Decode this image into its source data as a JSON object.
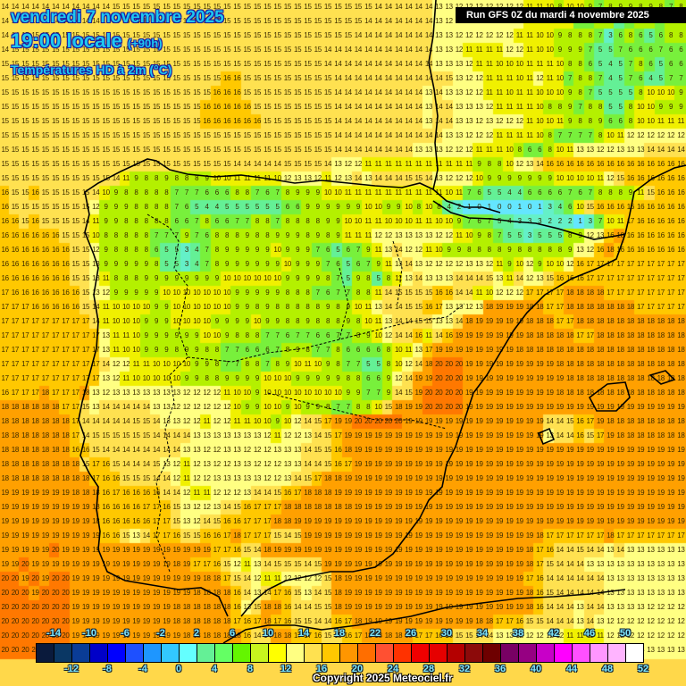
{
  "header": {
    "date": "vendredi 7 novembre 2025",
    "time": "19:00 locale",
    "offset": "(+90h)",
    "parameter": "Températures HD à 2m (°C)"
  },
  "run_banner": "Run GFS 0Z du mardi 4 novembre 2025",
  "copyright": "Copyright 2025 Meteociel.fr",
  "legend": {
    "colors": [
      "#0a1a3c",
      "#0a3764",
      "#0a3c96",
      "#0000c8",
      "#0000ff",
      "#1e50ff",
      "#1e96ff",
      "#32c8ff",
      "#64ffff",
      "#64f096",
      "#64ff64",
      "#64f500",
      "#c8f51e",
      "#ffff00",
      "#ffff82",
      "#ffe150",
      "#ffc800",
      "#ff9600",
      "#ff6e00",
      "#ff5032",
      "#ff3200",
      "#f00000",
      "#e60000",
      "#b40000",
      "#8c0a0a",
      "#6e0000",
      "#780064",
      "#960082",
      "#c800c8",
      "#ff00ff",
      "#ff50ff",
      "#ff96ff",
      "#ffb4ff",
      "#ffffff"
    ],
    "labels_top": [
      "-14",
      "-10",
      "-6",
      "-2",
      "2",
      "6",
      "10",
      "14",
      "18",
      "22",
      "26",
      "30",
      "34",
      "38",
      "42",
      "46",
      "50"
    ],
    "labels_bottom": [
      "-12",
      "-8",
      "-4",
      "0",
      "4",
      "8",
      "12",
      "16",
      "20",
      "24",
      "28",
      "32",
      "36",
      "40",
      "44",
      "48",
      "52"
    ]
  },
  "map": {
    "grid_cols": 68,
    "grid_rows": 46,
    "rows": [
      "14 14 14 14 14 14 14 14 14 14 14 15 15 15 15 15 15 15 15 15 15 15 15 15 15 15 15 15 15 15 15 15 15 15 15 15 15 14 14 14 14 14 14 13 13 12 12 12 12 12 12 12 11 11 10 8 10 10 9 7 8 9 9 8 9 8 7 8",
      "14 14 14 14 14 14 14 14 14 14 14 15 15 15 15 15 15 15 15 15 15 15 15 15 15 15 15 15 15 15 15 15 15 15 15 15 14 14 14 14 14 14 14 13 12 12 12 12 12 12 12 12 11 10 10 10 10 7 6 8 8 5 7 9 8 6 8 9",
      "14 14 15 15 15 15 15 15 15 15 15 15 15 15 15 15 15 15 15 15 15 15 15 15 15 15 15 15 15 15 15 15 15 15 15 14 14 14 14 14 14 14 14 13 13 12 12 12 12 12 12 11 11 10 10 9 8 8 8 7 3 6 8 6 5 6 8 8",
      "14 15 15 15 15 15 15 15 15 15 15 15 15 15 15 15 15 15 15 15 15 15 15 15 15 15 15 15 15 15 15 15 14 14 14 14 14 14 14 14 14 14 14 13 13 12 11 11 11 11 12 12 11 10 10 9 9 9 7 5 5 7 6 6 6 7 6 6",
      "15 15 15 15 15 15 15 15 15 15 15 15 15 15 15 15 15 15 15 15 15 15 15 15 15 15 15 15 15 15 15 15 14 14 14 14 14 14 14 14 14 14 14 13 13 13 12 11 11 10 10 10 11 11 11 10 8 8 6 5 4 5 7 8 6 5 6 6",
      "15 15 15 15 15 15 15 15 15 15 15 15 15 15 15 15 15 15 15 15 15 15 16 16 15 15 15 15 15 15 15 15 15 14 14 14 14 14 14 14 14 14 14 14 15 13 12 12 11 11 11 10 11 12 11 10 7 8 8 7 4 5 7 6 4 5 7 7",
      "15 15 15 15 15 15 15 15 15 15 15 15 15 15 15 15 15 15 15 15 15 16 16 16 15 15 15 15 15 15 15 15 15 14 14 14 14 14 14 14 14 14 13 14 13 13 12 12 11 11 10 11 11 10 10 10 9 8 7 5 5 5 5 8 10 10 10 9",
      "15 15 15 15 15 15 15 15 15 15 15 15 15 15 15 15 15 15 15 15 16 16 16 16 16 15 15 15 15 15 15 15 15 14 14 14 14 14 14 14 14 14 13 14 14 13 13 13 12 11 11 11 11 10 8 8 9 7 8 8 5 5 8 10 10 9 9 9",
      "15 15 15 15 15 15 15 15 15 15 15 15 15 15 15 15 15 15 15 15 16 16 16 16 16 16 15 15 15 15 15 15 15 14 14 14 14 14 14 14 14 14 13 14 14 13 13 12 13 12 12 12 11 10 10 11 9 8 8 9 6 6 8 10 10 11 11 11",
      "15 15 15 15 15 15 15 15 15 15 15 15 15 15 15 15 15 15 15 15 15 15 15 15 15 15 15 15 15 15 15 15 15 14 14 14 14 14 14 14 14 14 14 14 13 13 12 12 12 11 11 11 11 10 8 7 7 7 7 8 10 11 12 12 12 12 12 12",
      "15 15 15 15 15 15 15 15 15 15 15 15 15 15 15 15 15 15 15 15 15 15 15 15 15 15 15 15 15 15 15 15 15 14 14 14 14 14 14 14 14 13 13 13 12 12 12 11 11 11 10 8 6 6 8 10 11 13 13 12 12 13 13 13 14 14 14 14",
      "15 15 15 15 15 15 15 15 15 15 15 15 15 15 15 15 15 15 15 15 15 15 15 14 14 14 14 14 15 15 15 15 14 13 12 12 11 11 11 11 11 11 11 11 11 11 11 9 8 8 10 12 13 14 16 16 16 16 16 16 16 16 16 16 16 16 16 16",
      "15 15 15 15 15 15 15 15 15 15 15 14 11 9 8 8 9 8 8 8 9 10 10 11 11 11 11 10 12 13 13 12 11 12 13 14 13 14 14 14 15 15 14 13 12 12 12 10 9 9 9 9 9 9 9 10 10 10 10 11 12 15 16 16 16 16 16 16",
      "16 15 15 16 15 15 15 15 15 14 10 9 8 8 8 8 8 7 7 7 6 6 6 8 8 7 6 7 8 9 9 9 10 10 11 11 11 11 11 11 11 11 11 11 10 11 7 6 5 5 4 4 6 6 6 6 7 6 7 8 8 8 9 11 15 16 16 16",
      "16 15 15 15 15 15 15 15 15 12 9 9 9 8 8 8 8 7 6 5 4 4 5 5 5 5 5 5 6 6 9 9 9 9 9 9 10 10 9 9 10 8 10 8 4 2 1 0 1 0 0 1 0 1 3 4 6 10 15 16 16 16 16 16 16 16 16 16",
      "16 16 15 16 15 15 15 15 14 11 9 9 8 8 8 8 8 6 6 7 8 6 6 7 7 8 8 7 8 8 8 8 9 9 10 10 11 11 10 10 10 11 11 10 10 9 7 6 7 5 4 3 3 3 2 2 2 1 3 7 10 11 17 16 16 16 16 16",
      "16 16 16 16 16 16 15 15 15 10 8 8 8 8 8 7 7 7 9 7 6 8 8 8 9 8 8 9 9 9 8 9 8 9 11 11 11 12 12 13 13 13 13 12 12 11 10 9 8 7 5 5 3 5 5 5 8 9 12 13 16 18 16 16 16 16 16 16",
      "16 16 16 16 16 16 16 15 15 12 9 8 8 8 8 6 5 5 3 4 7 8 9 9 9 9 9 10 9 9 9 7 6 5 6 7 9 11 13 14 12 12 11 10 9 9 8 8 8 8 9 8 8 8 8 8 9 13 12 16 18 16 16 16 16 16 16 16",
      "16 16 16 16 16 16 16 15 15 13 9 9 9 9 9 8 5 5 3 4 7 8 9 9 9 9 9 9 10 9 9 9 7 6 5 6 7 9 11 13 14 13 12 12 12 12 13 13 12 11 9 10 12 9 10 10 12 16 17 17 17 17 17 17 17 17 17 17",
      "16 16 16 16 16 16 16 15 15 13 11 8 8 8 9 9 9 9 9 9 9 9 10 10 10 10 10 10 9 9 9 9 8 7 5 9 8 5 8 11 13 14 13 13 13 14 14 14 15 13 11 14 12 13 15 16 16 16 17 17 17 17 17 17 17 17 17 17",
      "17 16 16 16 16 16 16 16 15 13 12 9 9 9 9 9 10 10 10 10 10 10 10 9 9 9 9 9 8 8 8 7 6 7 7 8 8 11 14 15 15 15 15 16 16 14 14 11 10 12 12 12 17 17 17 17 18 18 18 18 17 17 17 17 17 17 17 17",
      "17 17 17 16 16 16 16 16 15 14 11 10 10 10 10 9 9 10 10 10 10 10 10 9 9 8 9 8 8 8 8 8 9 8 9 10 11 13 14 14 15 15 16 17 13 13 12 13 18 19 19 19 18 18 17 17 18 18 18 18 18 18 18 17 17 17 17 17",
      "17 17 17 17 17 17 17 17 17 14 11 10 10 10 9 9 9 10 10 10 10 9 9 9 9 10 9 9 8 8 9 8 8 8 9 8 10 11 13 14 14 15 15 13 13 14 18 19 19 19 19 19 18 18 18 17 17 18 18 18 18 18 18 18 18 18 18 18",
      "17 17 17 17 17 17 17 17 17 17 13 11 11 10 9 9 9 9 9 9 10 10 9 8 8 8 7 7 6 7 7 6 6 7 7 8 9 10 12 14 14 16 11 14 16 19 19 19 19 19 19 19 18 18 18 18 18 17 17 18 18 18 18 18 18 18 18 18",
      "17 17 17 17 17 17 17 17 17 17 13 11 10 10 9 9 9 8 9 9 8 8 7 7 6 6 6 7 8 9 8 7 7 8 6 6 6 6 8 10 11 13 17 19 19 19 19 19 19 19 19 18 18 18 18 18 18 18 18 18 18 18 18 18 18 18 18 18",
      "17 17 17 17 17 17 17 17 17 17 14 12 12 11 11 10 10 10 10 9 9 8 7 7 8 8 7 8 9 10 11 10 9 8 7 7 5 5 8 10 12 14 18 20 20 20 19 19 19 19 19 19 19 19 19 18 18 18 18 18 18 18 18 18 18 18 18 18",
      "17 17 17 17 17 17 17 17 17 17 13 12 11 10 10 10 10 10 9 9 8 8 9 9 9 9 10 10 10 9 9 9 9 9 8 8 6 6 9 12 14 19 19 20 20 20 19 19 19 19 19 19 19 19 19 19 18 18 18 18 18 18 18 18 18 18 18 18",
      "16 17 17 17 18 17 17 17 18 13 12 13 13 13 13 13 13 13 12 12 12 12 11 10 10 9 10 10 10 10 10 10 10 10 9 9 7 7 9 14 15 19 20 20 20 20 19 19 19 19 19 19 19 19 19 18 18 18 18 18 18 18 18 18 18 18 18 18",
      "18 18 18 18 18 18 17 17 15 13 14 14 14 14 14 13 13 12 12 12 12 12 12 10 9 9 10 10 9 10 9 9 8 7 7 8 8 10 15 18 19 19 20 20 20 20 19 19 19 19 19 19 19 19 19 19 19 19 19 19 19 19 19 19 19 19 19 19",
      "18 18 18 18 18 18 18 17 14 14 14 14 14 15 15 14 13 13 12 12 11 12 12 11 11 10 10 9 10 12 14 15 17 19 19 20 20 20 20 20 19 19 19 19 19 19 19 19 19 19 19 19 19 19 14 14 15 16 17 19 18 18 18 18 18 18 18 18",
      "18 18 18 18 18 18 18 17 14 15 15 15 15 15 15 14 14 14 14 13 13 13 13 13 13 13 12 11 12 12 13 14 15 17 19 19 19 19 19 19 19 19 19 19 19 19 19 19 19 19 19 19 19 19 13 14 14 16 15 17 19 18 18 18 18 18 18 18",
      "18 18 18 18 18 18 18 16 16 15 14 14 14 14 14 14 14 14 13 13 12 12 13 13 12 12 12 13 13 13 14 15 15 16 18 19 19 19 19 19 19 19 19 19 19 19 19 19 19 19 19 19 19 19 19 19 19 19 19 19 19 19 19 19 19 19 19 19",
      "18 18 18 18 18 18 18 18 15 17 16 15 14 14 14 15 13 12 11 12 13 12 12 13 13 12 12 12 13 13 14 14 15 16 17 19 19 19 19 19 19 19 19 19 19 19 19 19 19 19 19 19 19 19 19 19 19 19 19 19 19 19 19 19 19 19 19 19",
      "18 18 18 18 18 18 18 18 18 17 16 16 15 15 15 14 14 12 11 12 12 13 13 13 13 13 12 12 13 14 15 17 18 18 19 19 19 19 19 19 19 19 19 19 19 19 19 19 19 19 19 19 19 19 19 19 19 19 19 19 19 19 19 19 19 19 19 19",
      "19 19 19 19 19 19 19 18 18 18 16 17 16 16 16 16 14 14 12 11 11 12 12 12 13 14 14 15 16 17 18 18 18 19 19 19 19 19 19 19 19 19 19 19 19 19 19 19 19 19 19 19 19 19 19 19 19 19 19 19 19 19 19 19 19 19 19 19",
      "19 19 19 19 19 19 19 19 19 18 16 16 16 16 17 17 16 15 13 12 12 13 14 15 16 17 17 17 18 18 18 18 18 18 18 19 19 19 19 19 19 19 19 19 19 19 19 19 19 19 19 19 19 19 19 19 19 19 19 19 19 19 19 19 19 19 19 19",
      "19 19 19 19 19 19 19 19 19 18 16 16 16 16 16 17 17 15 13 12 14 15 16 16 17 17 17 18 18 19 19 19 19 19 19 19 19 19 19 19 19 19 19 19 19 19 19 19 19 19 19 19 19 19 19 19 19 19 19 19 19 19 19 19 19 19 19 19",
      "19 19 19 19 19 19 19 19 19 19 16 16 15 13 14 17 17 16 15 15 16 16 17 18 17 17 17 15 14 15 19 19 19 19 19 19 19 19 19 19 19 19 19 19 19 19 19 19 19 19 19 19 19 18 17 17 17 17 17 17 18 17 17 17 17 17 17 17",
      "19 19 19 19 19 20 19 19 19 19 19 19 19 19 19 19 19 19 19 19 19 17 17 16 15 14 18 19 19 19 19 19 19 19 19 19 19 19 19 19 19 19 19 19 19 19 19 19 19 19 19 19 18 17 16 14 14 15 14 14 13 14 13 13 13 13 13 13",
      "19 19 20 19 19 19 19 19 19 19 19 19 19 19 19 19 19 18 19 17 17 16 15 12 11 13 14 15 15 15 14 15 19 19 19 19 19 19 19 19 19 19 19 19 19 19 19 19 19 19 19 19 18 17 15 14 14 14 13 13 13 13 13 13 13 13 13 13",
      "20 20 19 20 19 20 20 19 19 19 19 19 19 19 19 19 19 19 19 19 18 18 17 15 14 12 11 11 12 12 12 12 15 18 19 19 19 19 19 19 19 19 19 19 19 19 19 19 19 19 19 19 17 16 14 14 14 14 14 14 13 13 13 13 13 13 13 13",
      "20 20 20 19 20 20 20 19 19 19 19 19 19 19 19 19 19 19 19 18 18 18 18 16 14 13 14 17 16 15 13 14 15 18 19 19 19 19 19 19 19 19 19 19 19 19 19 19 19 19 19 19 18 16 15 14 14 14 14 14 13 13 13 13 13 13 13 13",
      "20 20 20 20 20 20 20 19 19 19 19 19 19 19 19 19 19 18 18 18 18 18 18 16 13 15 18 18 16 14 14 15 15 18 19 19 19 19 19 19 19 19 19 19 19 19 19 19 19 19 19 19 18 16 14 14 14 13 14 14 13 13 13 13 12 12 12 12",
      "20 20 20 20 20 20 20 19 19 19 19 19 19 19 19 19 19 18 18 18 18 18 18 17 16 17 18 17 16 15 15 14 14 16 17 18 19 19 19 19 19 19 19 19 19 19 19 18 18 17 17 16 15 15 14 14 14 13 14 13 12 12 12 12 12 12 12 12",
      "20 20 20 20 20 20 20 19 19 19 19 19 19 19 19 19 19 19 18 18 18 18 18 18 16 14 14 18 18 17 17 16 15 15 16 17 18 18 18 18 18 17 17 16 16 15 15 14 14 13 13 12 12 12 12 12 11 11 11 11 12 12 12 12 12 12 12 12",
      "20 20 20 20 20 20 20 19 19 19 19 19 19 19 19 19 19 19 19 18 18 18 18 18 18 17 17 17 17 17 16 16 15 15 15 15 15 14 14 14 14 14 13 13 13 13 13 13 12 12 12 12 12 11 11 11 11 11 11 12 12 13 13 13 13 13 13 13"
    ]
  }
}
